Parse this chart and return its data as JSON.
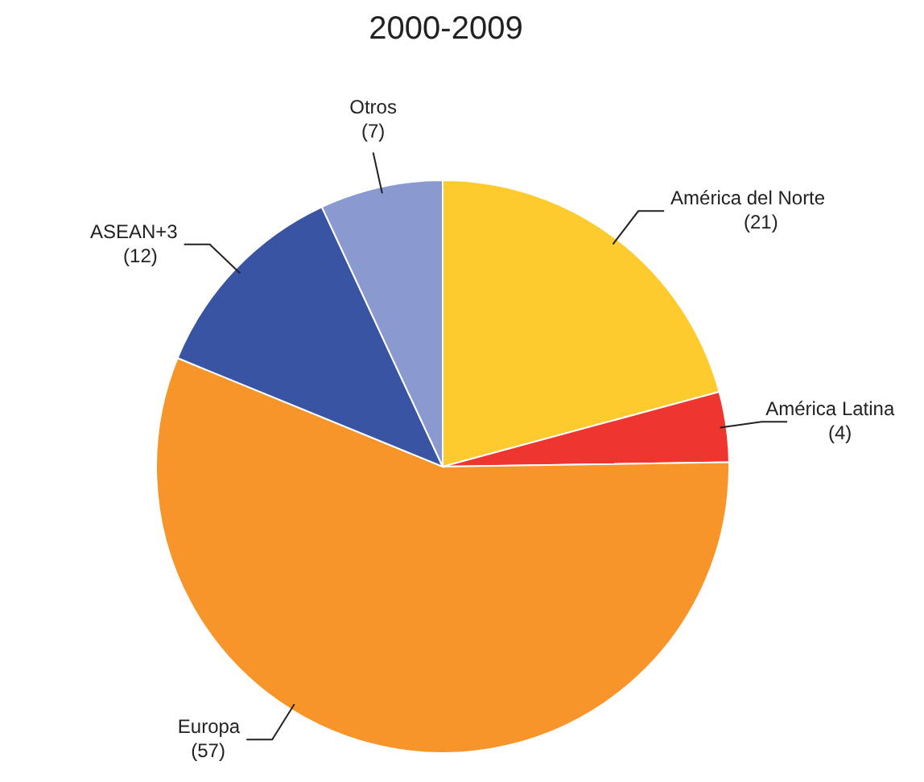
{
  "chart_data": {
    "type": "pie",
    "title": "2000-2009",
    "categories": [
      "América del Norte",
      "América Latina",
      "Europa",
      "ASEAN+3",
      "Otros"
    ],
    "values": [
      21,
      4,
      57,
      12,
      7
    ],
    "value_labels": [
      "(21)",
      "(4)",
      "(57)",
      "(12)",
      "(7)"
    ],
    "colors": [
      "#fdcb2e",
      "#ee3530",
      "#f7952b",
      "#3a54a4",
      "#8a9ad0"
    ]
  }
}
